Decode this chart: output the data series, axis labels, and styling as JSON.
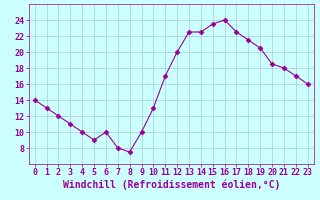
{
  "x": [
    0,
    1,
    2,
    3,
    4,
    5,
    6,
    7,
    8,
    9,
    10,
    11,
    12,
    13,
    14,
    15,
    16,
    17,
    18,
    19,
    20,
    21,
    22,
    23
  ],
  "y": [
    14,
    13,
    12,
    11,
    10,
    9,
    10,
    8,
    7.5,
    10,
    13,
    17,
    20,
    22.5,
    22.5,
    23.5,
    24,
    22.5,
    21.5,
    20.5,
    18.5,
    18,
    17,
    16
  ],
  "line_color": "#990099",
  "marker": "D",
  "marker_size": 2.5,
  "bg_color": "#ccffff",
  "grid_color": "#aacccc",
  "xlabel": "Windchill (Refroidissement éolien,°C)",
  "xlabel_color": "#990099",
  "xlabel_fontsize": 7,
  "tick_color": "#990099",
  "tick_fontsize": 6,
  "ylim": [
    6,
    26
  ],
  "xlim": [
    -0.5,
    23.5
  ],
  "yticks": [
    8,
    10,
    12,
    14,
    16,
    18,
    20,
    22,
    24
  ],
  "xticks": [
    0,
    1,
    2,
    3,
    4,
    5,
    6,
    7,
    8,
    9,
    10,
    11,
    12,
    13,
    14,
    15,
    16,
    17,
    18,
    19,
    20,
    21,
    22,
    23
  ]
}
